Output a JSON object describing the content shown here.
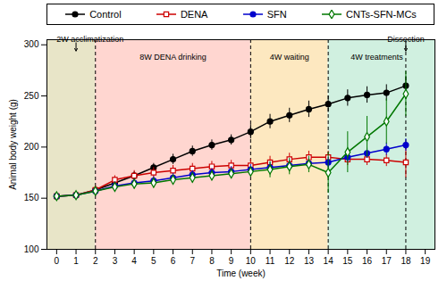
{
  "chart_data": {
    "type": "line",
    "xlabel": "Time (week)",
    "ylabel": "Animal body weight (g)",
    "x": [
      0,
      1,
      2,
      3,
      4,
      5,
      6,
      7,
      8,
      9,
      10,
      11,
      12,
      13,
      14,
      15,
      16,
      17,
      18
    ],
    "xlim": [
      -0.5,
      19.5
    ],
    "xticks": [
      0,
      1,
      2,
      3,
      4,
      5,
      6,
      7,
      8,
      9,
      10,
      11,
      12,
      13,
      14,
      15,
      16,
      17,
      18,
      19
    ],
    "ylim": [
      100,
      305
    ],
    "yticks": [
      100,
      150,
      200,
      250,
      300
    ],
    "grid": false,
    "legend": "top",
    "series": [
      {
        "name": "Control",
        "color": "#000000",
        "marker": "circle",
        "line_style": "solid",
        "values": [
          152,
          153,
          158,
          165,
          172,
          180,
          188,
          196,
          202,
          207,
          215,
          225,
          231,
          237,
          242,
          248,
          251,
          253,
          260
        ],
        "errors": [
          3,
          3,
          3,
          4,
          4,
          4,
          5,
          5,
          5,
          5,
          7,
          7,
          7,
          8,
          8,
          8,
          8,
          8,
          9
        ]
      },
      {
        "name": "DENA",
        "color": "#cc0000",
        "marker": "open square",
        "line_style": "solid",
        "values": [
          152,
          153,
          158,
          168,
          172,
          175,
          177,
          179,
          181,
          182,
          182,
          185,
          188,
          190,
          190,
          188,
          188,
          187,
          185
        ],
        "errors": [
          3,
          3,
          4,
          4,
          5,
          5,
          5,
          5,
          5,
          5,
          6,
          6,
          6,
          6,
          6,
          6,
          6,
          6,
          15
        ]
      },
      {
        "name": "SFN",
        "color": "#0000cc",
        "marker": "circle",
        "line_style": "solid",
        "values": [
          152,
          153,
          157,
          162,
          165,
          167,
          170,
          173,
          175,
          176,
          178,
          180,
          182,
          184,
          185,
          190,
          194,
          198,
          202
        ],
        "errors": [
          3,
          3,
          3,
          4,
          4,
          4,
          4,
          4,
          4,
          5,
          5,
          5,
          5,
          5,
          5,
          5,
          5,
          6,
          6
        ]
      },
      {
        "name": "CNTs-SFN-MCs",
        "color": "#007700",
        "marker": "open diamond",
        "line_style": "solid",
        "values": [
          152,
          153,
          157,
          161,
          164,
          165,
          168,
          170,
          172,
          174,
          176,
          178,
          181,
          183,
          175,
          195,
          210,
          225,
          252
        ],
        "errors": [
          3,
          3,
          3,
          4,
          5,
          5,
          5,
          5,
          5,
          5,
          5,
          8,
          8,
          8,
          20,
          20,
          20,
          22,
          22
        ]
      }
    ],
    "regions": [
      {
        "x0": -0.5,
        "x1": 2,
        "color": "#e8e5c8"
      },
      {
        "x0": 2,
        "x1": 10,
        "color": "#ffd6d0"
      },
      {
        "x0": 10,
        "x1": 14,
        "color": "#fde8c0"
      },
      {
        "x0": 14,
        "x1": 19.5,
        "color": "#d0f0e0"
      }
    ],
    "vlines": [
      2,
      10,
      14,
      18
    ],
    "annotations": [
      {
        "text": "8W DENA drinking",
        "x": 6.0,
        "y": 293,
        "anchor": "top"
      },
      {
        "text": "4W waiting",
        "x": 12.0,
        "y": 293,
        "anchor": "top"
      },
      {
        "text": "4W treatments",
        "x": 16.5,
        "y": 293,
        "anchor": "top"
      },
      {
        "text": "2W acclimatization",
        "x": 0.0,
        "y": 302,
        "anchor": "bottom left"
      },
      {
        "text": "Dissection",
        "x": 18,
        "y": 302,
        "anchor": "bottom"
      }
    ],
    "arrows": [
      {
        "x1": 1.0,
        "y1": 302,
        "x2": 1.0,
        "y2": 294
      },
      {
        "x1": 18,
        "y1": 302,
        "x2": 18,
        "y2": 294
      }
    ]
  }
}
